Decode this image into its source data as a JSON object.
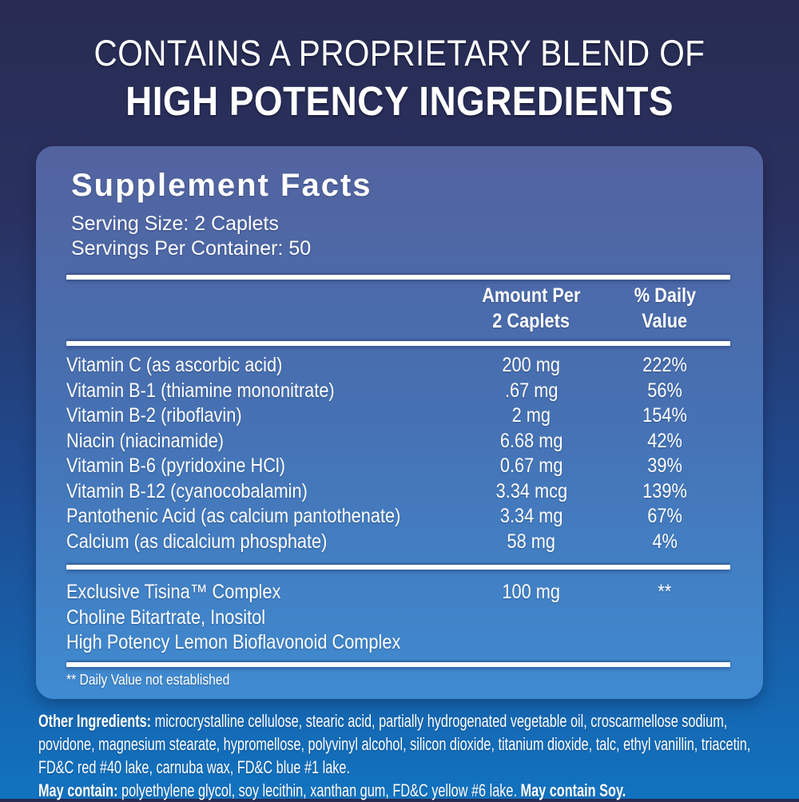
{
  "colors": {
    "background_top": "#282c53",
    "background_bottom": "#1173c0",
    "panel_top": "#53639f",
    "panel_bottom": "#3f8bd1",
    "text": "#ffffff",
    "rule": "#ffffff"
  },
  "header": {
    "line1": "CONTAINS A PROPRIETARY BLEND OF",
    "line2": "HIGH POTENCY INGREDIENTS"
  },
  "panel": {
    "title": "Supplement Facts",
    "serving_size": "Serving Size: 2 Caplets",
    "servings_per_container": "Servings Per Container: 50",
    "columns": {
      "amount_line1": "Amount Per",
      "amount_line2": "2 Caplets",
      "daily_line1": "% Daily",
      "daily_line2": "Value"
    },
    "rows": [
      {
        "name": "Vitamin C (as ascorbic acid)",
        "amount": "200 mg",
        "daily": "222%"
      },
      {
        "name": "Vitamin B-1 (thiamine mononitrate)",
        "amount": ".67 mg",
        "daily": "56%"
      },
      {
        "name": "Vitamin B-2 (riboflavin)",
        "amount": "2 mg",
        "daily": "154%"
      },
      {
        "name": "Niacin (niacinamide)",
        "amount": "6.68 mg",
        "daily": "42%"
      },
      {
        "name": "Vitamin B-6 (pyridoxine HCl)",
        "amount": "0.67 mg",
        "daily": "39%"
      },
      {
        "name": "Vitamin B-12 (cyanocobalamin)",
        "amount": "3.34 mcg",
        "daily": "139%"
      },
      {
        "name": "Pantothenic Acid (as calcium pantothenate)",
        "amount": "3.34 mg",
        "daily": "67%"
      },
      {
        "name": "Calcium (as dicalcium phosphate)",
        "amount": "58 mg",
        "daily": "4%"
      }
    ],
    "blend": {
      "name": "Exclusive Tisina™ Complex",
      "amount": "100 mg",
      "daily": "**",
      "line2": "Choline Bitartrate, Inositol",
      "line3": "High Potency Lemon Bioflavonoid Complex"
    },
    "footnote": "** Daily Value not established"
  },
  "bottom": {
    "other_label": "Other Ingredients:",
    "other_text": " microcrystalline cellulose, stearic acid, partially hydrogenated vegetable oil, croscarmellose sodium, povidone, magnesium stearate, hypromellose, polyvinyl alcohol, silicon dioxide, titanium dioxide, talc, ethyl vanillin, triacetin, FD&C red #40 lake, carnuba wax, FD&C blue #1 lake.",
    "may_label": "May contain:",
    "may_text": " polyethylene glycol, soy lecithin, xanthan gum, FD&C yellow #6 lake. ",
    "may_bold": "May contain Soy."
  }
}
